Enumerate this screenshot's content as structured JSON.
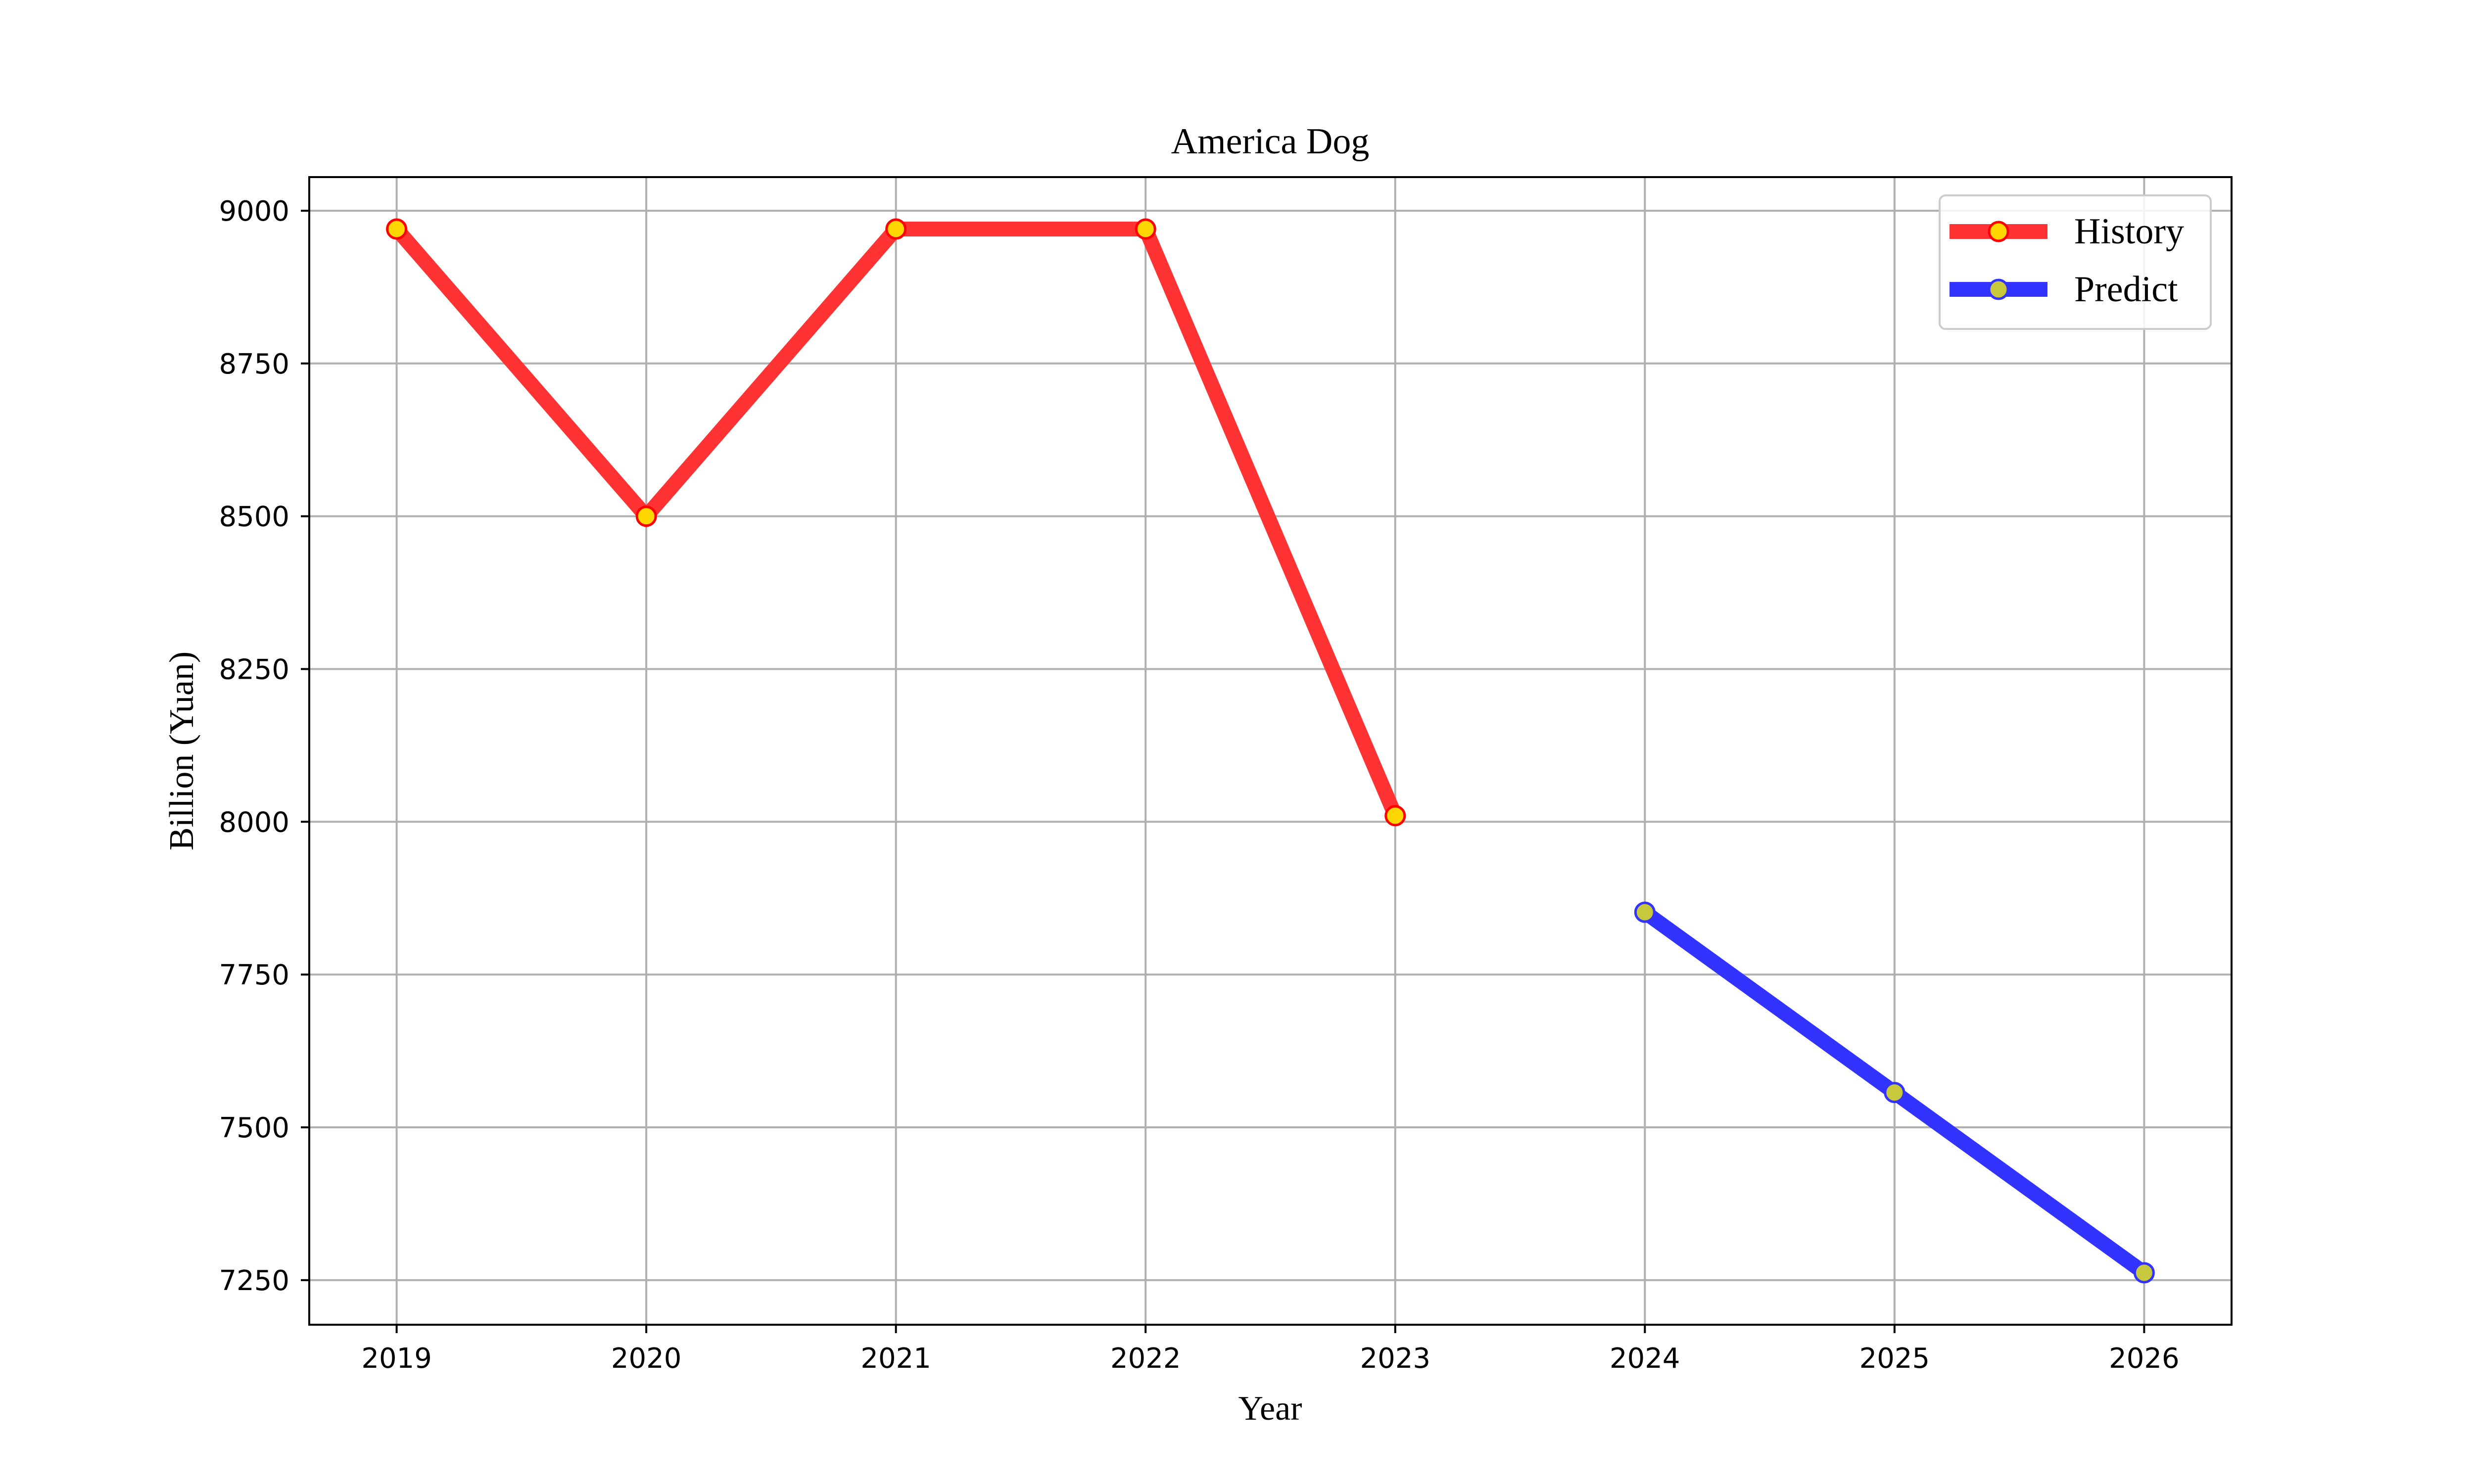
{
  "chart_data": {
    "type": "line",
    "title": "America Dog",
    "xlabel": "Year",
    "ylabel": "Billion (Yuan)",
    "x": [
      2019,
      2020,
      2021,
      2022,
      2023,
      2024,
      2025,
      2026
    ],
    "x_tick_labels": [
      "2019",
      "2020",
      "2021",
      "2022",
      "2023",
      "2024",
      "2025",
      "2026"
    ],
    "xlim": [
      2018.65,
      2026.35
    ],
    "ylim": [
      7177,
      9055
    ],
    "y_ticks": [
      7250,
      7500,
      7750,
      8000,
      8250,
      8500,
      8750,
      9000
    ],
    "y_tick_labels": [
      "7250",
      "7500",
      "7750",
      "8000",
      "8250",
      "8500",
      "8750",
      "9000"
    ],
    "grid": true,
    "legend_position": "top-right",
    "series": [
      {
        "name": "History",
        "x": [
          2019,
          2020,
          2021,
          2022,
          2023
        ],
        "values": [
          8970,
          8500,
          8970,
          8970,
          8010
        ],
        "color": "#ff3333",
        "marker_fill": "#ffd700",
        "marker_edge": "#ff0000"
      },
      {
        "name": "Predict",
        "x": [
          2024,
          2025,
          2026
        ],
        "values": [
          7852,
          7557,
          7262
        ],
        "color": "#3333ff",
        "marker_fill": "#c8c83c",
        "marker_edge": "#3333ff"
      }
    ]
  }
}
